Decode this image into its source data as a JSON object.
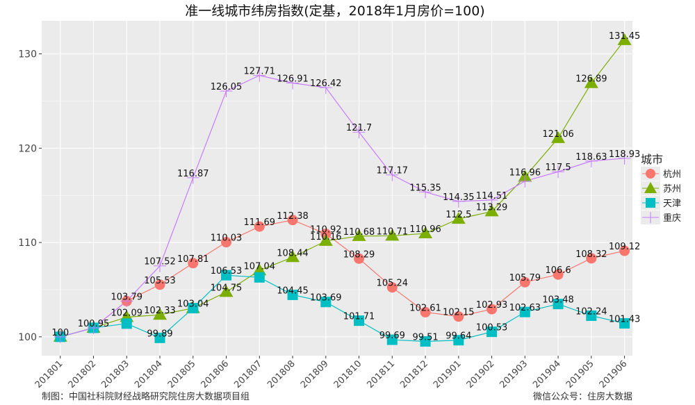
{
  "footer": {
    "left": "制图：中国社科院财经战略研究院住房大数据项目组",
    "right": "微信公众号：住房大数据"
  },
  "colors": {
    "panel": "#EBEBEB",
    "grid": "#FFFFFF",
    "hangzhou": "#F8766D",
    "suzhou": "#7CAE00",
    "tianjin": "#00BFC4",
    "chongqing": "#C77CFF"
  },
  "chart_data": {
    "type": "line",
    "title": "准一线城市纬房指数(定基，2018年1月房价=100)",
    "xlabel": "",
    "ylabel": "",
    "categories": [
      "201801",
      "201802",
      "201803",
      "201804",
      "201805",
      "201806",
      "201807",
      "201808",
      "201809",
      "201810",
      "201811",
      "201812",
      "201901",
      "201902",
      "201903",
      "201904",
      "201905",
      "201906"
    ],
    "ylim": [
      98,
      133.5
    ],
    "yticks": [
      100,
      110,
      120,
      130
    ],
    "grid": true,
    "legend": {
      "title": "城市",
      "position": "right"
    },
    "series": [
      {
        "name": "杭州",
        "marker": "circle",
        "values": [
          100,
          100.95,
          103.79,
          105.53,
          107.81,
          110.03,
          111.69,
          112.38,
          110.92,
          108.29,
          105.24,
          102.61,
          102.15,
          102.93,
          105.79,
          106.6,
          108.32,
          109.12
        ]
      },
      {
        "name": "苏州",
        "marker": "triangle",
        "values": [
          100,
          100.95,
          102.09,
          102.33,
          103.04,
          104.75,
          107.04,
          108.44,
          110.16,
          110.68,
          110.71,
          110.96,
          112.5,
          113.29,
          116.96,
          121.06,
          126.89,
          131.45
        ]
      },
      {
        "name": "天津",
        "marker": "square",
        "values": [
          100,
          100.95,
          101.4,
          99.89,
          103.04,
          106.53,
          106.3,
          104.45,
          103.69,
          101.71,
          99.69,
          99.51,
          99.64,
          100.53,
          102.63,
          103.48,
          102.24,
          101.43
        ]
      },
      {
        "name": "重庆",
        "marker": "plus",
        "values": [
          100,
          100.95,
          103.79,
          107.52,
          116.87,
          126.05,
          127.71,
          126.91,
          126.42,
          121.7,
          117.17,
          115.35,
          114.35,
          114.51,
          116.5,
          117.5,
          118.63,
          118.93
        ]
      }
    ],
    "point_labels": [
      {
        "x": "201801",
        "y": 100,
        "text": "100"
      },
      {
        "x": "201802",
        "y": 100.95,
        "text": "100.95"
      },
      {
        "x": "201803",
        "y": 103.79,
        "text": "103.79"
      },
      {
        "x": "201804",
        "y": 105.53,
        "text": "105.53"
      },
      {
        "x": "201805",
        "y": 107.81,
        "text": "107.81"
      },
      {
        "x": "201806",
        "y": 110.03,
        "text": "110.03"
      },
      {
        "x": "201807",
        "y": 111.69,
        "text": "111.69"
      },
      {
        "x": "201808",
        "y": 112.38,
        "text": "112.38"
      },
      {
        "x": "201809",
        "y": 110.92,
        "text": "110.92"
      },
      {
        "x": "201810",
        "y": 108.29,
        "text": "108.29"
      },
      {
        "x": "201811",
        "y": 105.24,
        "text": "105.24"
      },
      {
        "x": "201812",
        "y": 102.61,
        "text": "102.61"
      },
      {
        "x": "201901",
        "y": 102.15,
        "text": "102.15"
      },
      {
        "x": "201902",
        "y": 102.93,
        "text": "102.93"
      },
      {
        "x": "201903",
        "y": 105.79,
        "text": "105.79"
      },
      {
        "x": "201904",
        "y": 106.6,
        "text": "106.6"
      },
      {
        "x": "201905",
        "y": 108.32,
        "text": "108.32"
      },
      {
        "x": "201906",
        "y": 109.12,
        "text": "109.12"
      },
      {
        "x": "201803",
        "y": 102.09,
        "text": "102.09"
      },
      {
        "x": "201804",
        "y": 102.33,
        "text": "102.33"
      },
      {
        "x": "201805",
        "y": 103.04,
        "text": "103.04"
      },
      {
        "x": "201806",
        "y": 104.75,
        "text": "104.75"
      },
      {
        "x": "201807",
        "y": 107.04,
        "text": "107.04"
      },
      {
        "x": "201808",
        "y": 108.44,
        "text": "108.44"
      },
      {
        "x": "201809",
        "y": 110.16,
        "text": "110.16"
      },
      {
        "x": "201810",
        "y": 110.68,
        "text": "110.68"
      },
      {
        "x": "201811",
        "y": 110.71,
        "text": "110.71"
      },
      {
        "x": "201812",
        "y": 110.96,
        "text": "110.96"
      },
      {
        "x": "201901",
        "y": 112.5,
        "text": "112.5"
      },
      {
        "x": "201902",
        "y": 113.29,
        "text": "113.29"
      },
      {
        "x": "201903",
        "y": 116.96,
        "text": "116.96"
      },
      {
        "x": "201904",
        "y": 121.06,
        "text": "121.06"
      },
      {
        "x": "201905",
        "y": 126.89,
        "text": "126.89"
      },
      {
        "x": "201906",
        "y": 131.45,
        "text": "131.45"
      },
      {
        "x": "201804",
        "y": 99.89,
        "text": "99.89"
      },
      {
        "x": "201806",
        "y": 106.53,
        "text": "106.53"
      },
      {
        "x": "201808",
        "y": 104.45,
        "text": "104.45"
      },
      {
        "x": "201809",
        "y": 103.69,
        "text": "103.69"
      },
      {
        "x": "201810",
        "y": 101.71,
        "text": "101.71"
      },
      {
        "x": "201811",
        "y": 99.69,
        "text": "99.69"
      },
      {
        "x": "201812",
        "y": 99.51,
        "text": "99.51"
      },
      {
        "x": "201901",
        "y": 99.64,
        "text": "99.64"
      },
      {
        "x": "201902",
        "y": 100.53,
        "text": "100.53"
      },
      {
        "x": "201903",
        "y": 102.63,
        "text": "102.63"
      },
      {
        "x": "201904",
        "y": 103.48,
        "text": "103.48"
      },
      {
        "x": "201905",
        "y": 102.24,
        "text": "102.24"
      },
      {
        "x": "201906",
        "y": 101.43,
        "text": "101.43"
      },
      {
        "x": "201804",
        "y": 107.52,
        "text": "107.52"
      },
      {
        "x": "201805",
        "y": 116.87,
        "text": "116.87"
      },
      {
        "x": "201806",
        "y": 126.05,
        "text": "126.05"
      },
      {
        "x": "201807",
        "y": 127.71,
        "text": "127.71"
      },
      {
        "x": "201808",
        "y": 126.91,
        "text": "126.91"
      },
      {
        "x": "201809",
        "y": 126.42,
        "text": "126.42"
      },
      {
        "x": "201810",
        "y": 121.7,
        "text": "121.7"
      },
      {
        "x": "201811",
        "y": 117.17,
        "text": "117.17"
      },
      {
        "x": "201812",
        "y": 115.35,
        "text": "115.35"
      },
      {
        "x": "201901",
        "y": 114.35,
        "text": "114.35"
      },
      {
        "x": "201902",
        "y": 114.51,
        "text": "114.51"
      },
      {
        "x": "201904",
        "y": 117.5,
        "text": "117.5"
      },
      {
        "x": "201905",
        "y": 118.63,
        "text": "118.63"
      },
      {
        "x": "201906",
        "y": 118.93,
        "text": "118.93"
      }
    ]
  }
}
